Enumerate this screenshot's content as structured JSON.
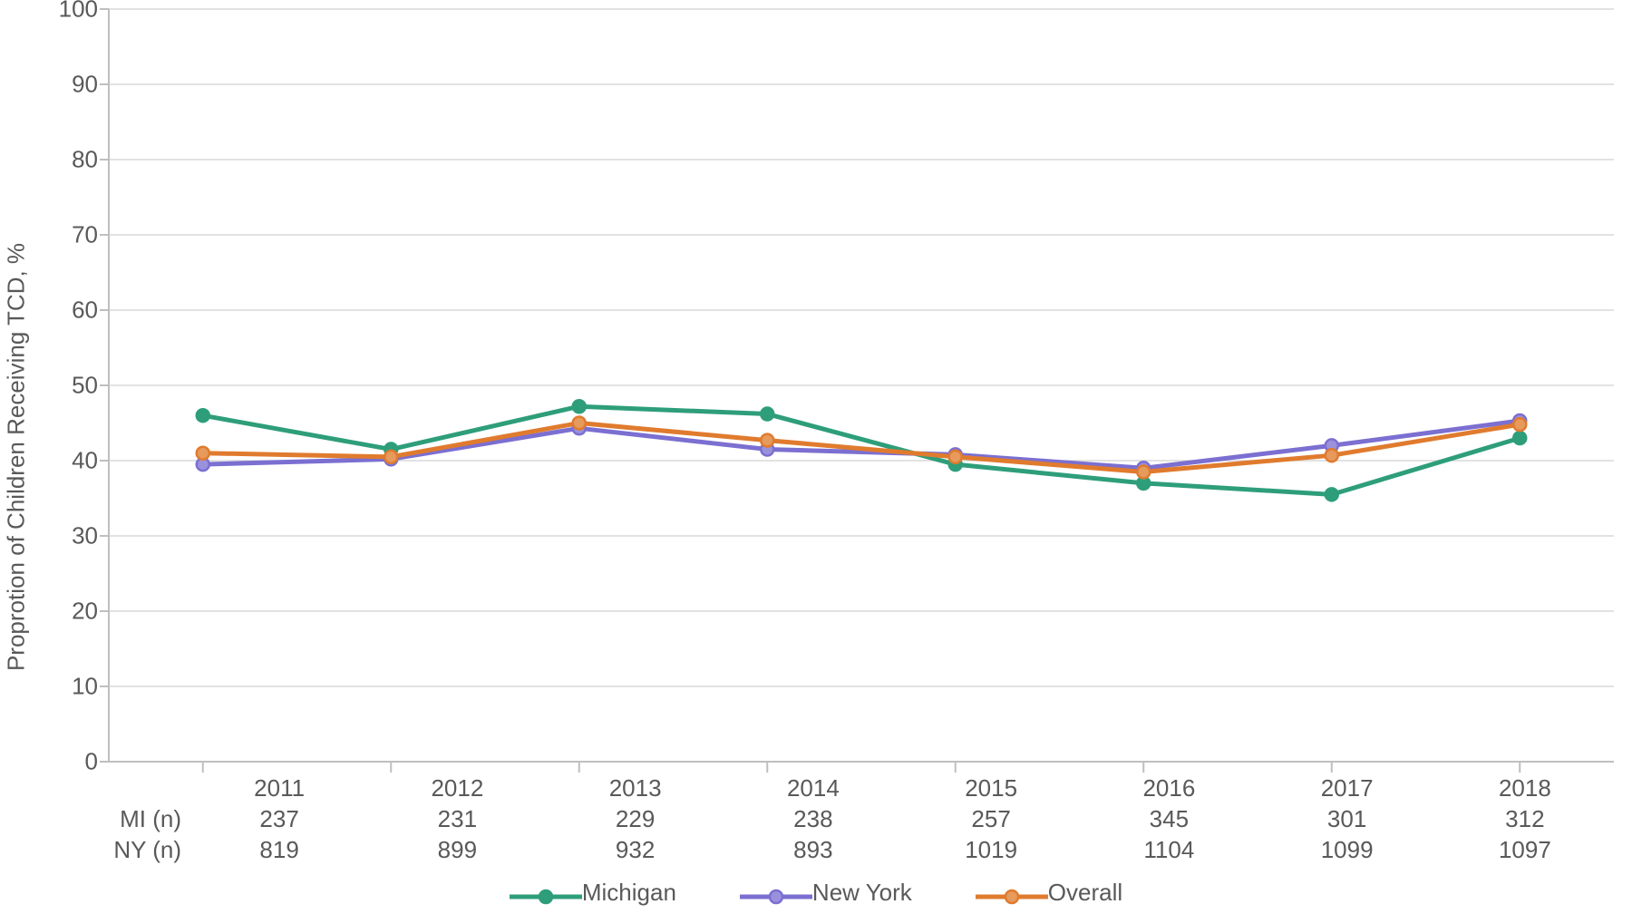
{
  "chart": {
    "type": "line",
    "ylabel": "Proprotion of Children Receiving TCD, %",
    "ylim": [
      0,
      100
    ],
    "ytick_step": 10,
    "yticks": [
      0,
      10,
      20,
      30,
      40,
      50,
      60,
      70,
      80,
      90,
      100
    ],
    "categories": [
      "2011",
      "2012",
      "2013",
      "2014",
      "2015",
      "2016",
      "2017",
      "2018"
    ],
    "row_labels": [
      "MI (n)",
      "NY (n)"
    ],
    "mi_n": [
      "237",
      "231",
      "229",
      "238",
      "257",
      "345",
      "301",
      "312"
    ],
    "ny_n": [
      "819",
      "899",
      "932",
      "893",
      "1019",
      "1104",
      "1099",
      "1097"
    ],
    "series": [
      {
        "name": "Michigan",
        "color": "#2e9e7a",
        "marker_fill": "#2e9e7a",
        "marker_stroke": "#2e9e7a",
        "values": [
          46.0,
          41.5,
          47.2,
          46.2,
          39.5,
          37.0,
          35.5,
          43.0
        ]
      },
      {
        "name": "New York",
        "color": "#7b6fd1",
        "marker_fill": "#9a91dd",
        "marker_stroke": "#7b6fd1",
        "values": [
          39.5,
          40.2,
          44.3,
          41.5,
          40.8,
          39.0,
          42.0,
          45.3
        ]
      },
      {
        "name": "Overall",
        "color": "#e07b2e",
        "marker_fill": "#e69a5c",
        "marker_stroke": "#e07b2e",
        "values": [
          41.0,
          40.5,
          45.0,
          42.7,
          40.5,
          38.5,
          40.7,
          44.8
        ]
      }
    ],
    "background_color": "#ffffff",
    "grid_color": "#d9d9d9",
    "axis_color": "#bfbfbf",
    "tick_color": "#bfbfbf",
    "text_color": "#595959",
    "label_fontsize": 26,
    "line_width": 5,
    "marker_radius": 7,
    "marker_stroke_width": 2.5
  }
}
